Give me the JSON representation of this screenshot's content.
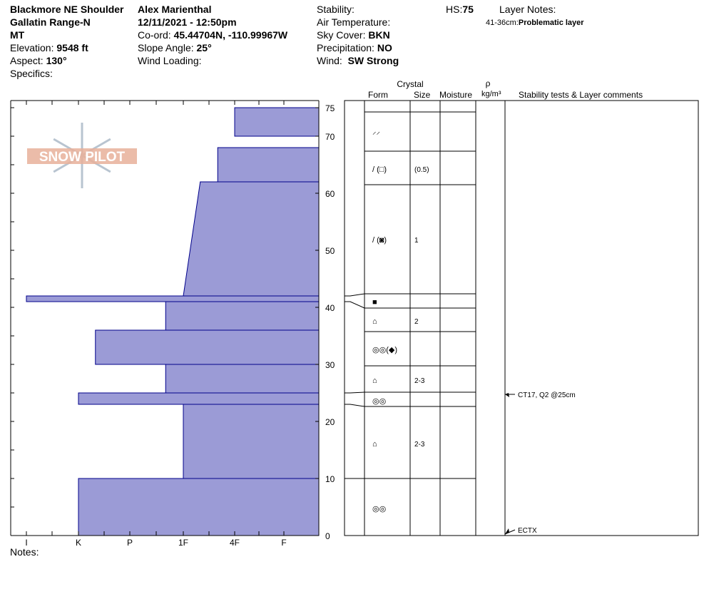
{
  "header": {
    "location_line1": "Blackmore NE Shoulder",
    "location_line2": "Gallatin Range-N",
    "location_line3": "MT",
    "elevation_label": "Elevation:",
    "elevation_value": "9548 ft",
    "aspect_label": "Aspect:",
    "aspect_value": "130°",
    "specifics_label": "Specifics:",
    "observer": "Alex Marienthal",
    "datetime": "12/11/2021 - 12:50pm",
    "coord_label": "Co-ord:",
    "coord_value": "45.44704N, -110.99967W",
    "slope_label": "Slope Angle:",
    "slope_value": "25°",
    "wind_loading_label": "Wind Loading:",
    "stability_label": "Stability:",
    "air_temp_label": "Air Temperature:",
    "sky_label": "Sky Cover:",
    "sky_value": "BKN",
    "precip_label": "Precipitation:",
    "precip_value": "NO",
    "wind_label": "Wind:",
    "wind_value": "SW Strong",
    "hs_label": "HS:",
    "hs_value": "75",
    "layer_notes_label": "Layer Notes:",
    "layer_note_range": "41-36cm:",
    "layer_note_text": "Problematic layer",
    "notes_label": "Notes:"
  },
  "logo_text": "SNOW PILOT",
  "columns": {
    "crystal": "Crystal",
    "form": "Form",
    "size": "Size",
    "moisture": "Moisture",
    "rho": "ρ",
    "density_unit": "kg/m³",
    "comments": "Stability tests & Layer comments"
  },
  "colors": {
    "fill": "#9b9bd6",
    "outline": "#00008b",
    "grid": "#000000",
    "logo": "#e8b09a"
  },
  "chart_data": {
    "type": "bar",
    "orientation": "horizontal",
    "description_axis_y": "Height (cm)",
    "ylim": [
      0,
      77
    ],
    "y_ticks": [
      0,
      10,
      20,
      30,
      40,
      50,
      60,
      70,
      75
    ],
    "hardness_scale": [
      "I",
      "K",
      "P",
      "1F",
      "4F",
      "F"
    ],
    "layers": [
      {
        "bottom": 70,
        "top": 75,
        "hardness_at_top": 1.0,
        "hardness_at_bottom": 1.0,
        "form": "decomposing",
        "size": ""
      },
      {
        "bottom": 62,
        "top": 68,
        "hardness_at_top": 1.33,
        "hardness_at_bottom": 1.33,
        "form": "decomposing/faceted",
        "size": "(0.5)"
      },
      {
        "bottom": 42,
        "top": 62,
        "hardness_at_top": 1.67,
        "hardness_at_bottom": 2.0,
        "form": "decomposing/depth-hoar-faceted",
        "size": "1"
      },
      {
        "bottom": 41,
        "top": 42,
        "hardness_at_top": 5.67,
        "hardness_at_bottom": 5.67,
        "form": "ice",
        "size": ""
      },
      {
        "bottom": 36,
        "top": 41,
        "hardness_at_top": 2.33,
        "hardness_at_bottom": 2.33,
        "form": "faceted",
        "size": "2"
      },
      {
        "bottom": 30,
        "top": 36,
        "hardness_at_top": 3.67,
        "hardness_at_bottom": 3.67,
        "form": "melt-forms",
        "size": ""
      },
      {
        "bottom": 25,
        "top": 30,
        "hardness_at_top": 2.33,
        "hardness_at_bottom": 2.33,
        "form": "faceted",
        "size": "2-3"
      },
      {
        "bottom": 23,
        "top": 25,
        "hardness_at_top": 4.0,
        "hardness_at_bottom": 4.0,
        "form": "melt-forms",
        "size": ""
      },
      {
        "bottom": 10,
        "top": 23,
        "hardness_at_top": 2.0,
        "hardness_at_bottom": 2.0,
        "form": "faceted",
        "size": "2-3"
      },
      {
        "bottom": 0,
        "top": 10,
        "hardness_at_top": 4.0,
        "hardness_at_bottom": 4.0,
        "form": "melt-forms",
        "size": ""
      }
    ],
    "tests": [
      {
        "height": 25,
        "text": "CT17, Q2 @25cm"
      },
      {
        "height": 0,
        "text": "ECTX"
      }
    ]
  }
}
